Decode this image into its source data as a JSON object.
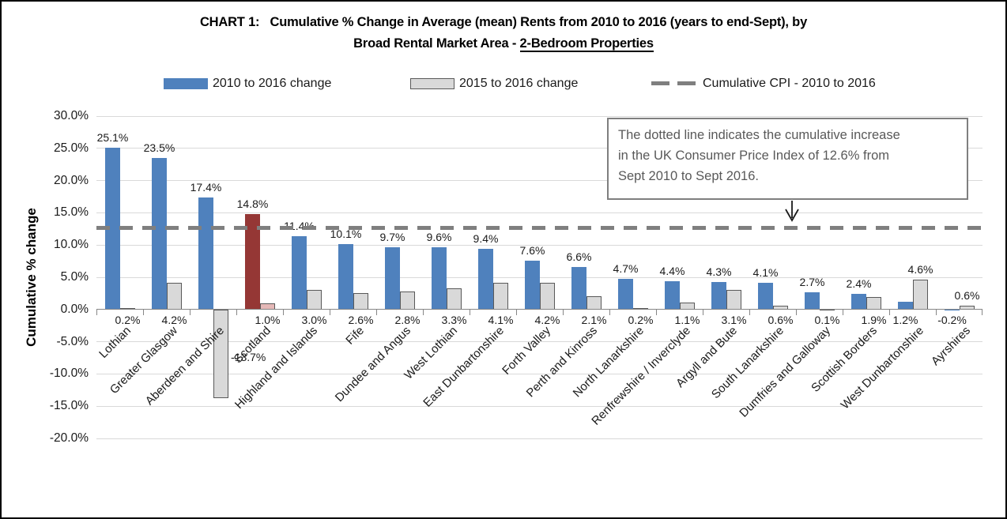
{
  "title": {
    "line1": "CHART 1:   Cumulative % Change in Average (mean) Rents from 2010 to 2016 (years to end-Sept), by",
    "line2_prefix": "Broad Rental Market Area - ",
    "line2_underline": "2-Bedroom Properties"
  },
  "legend": {
    "series1": "2010 to 2016 change",
    "series2": "2015 to 2016 change",
    "cpi": "Cumulative CPI - 2010 to 2016"
  },
  "annotation": {
    "text": "The dotted line indicates the cumulative increase\nin the UK Consumer Price Index of 12.6% from\nSept 2010 to Sept 2016."
  },
  "colors": {
    "series1": "#4F81BD",
    "series2_fill": "#D9D9D9",
    "series2_border": "#595959",
    "highlight_series1": "#953735",
    "highlight_series2_fill": "#E5B8B7",
    "highlight_series2_border": "#595959",
    "cpi_line": "#7F7F7F",
    "gridline": "#D9D9D9",
    "axis": "#868686"
  },
  "chart_data": {
    "type": "bar",
    "title": "CHART 1: Cumulative % Change in Average (mean) Rents from 2010 to 2016 (years to end-Sept), by Broad Rental Market Area - 2-Bedroom Properties",
    "ylabel": "Cumulative % change",
    "ylim": [
      -20,
      30
    ],
    "y_tick_step": 5,
    "grid": true,
    "legend_position": "top",
    "categories": [
      "Lothian",
      "Greater Glasgow",
      "Aberdeen and Shire",
      "Scotland",
      "Highland and Islands",
      "Fife",
      "Dundee and Angus",
      "West Lothian",
      "East Dunbartonshire",
      "Forth Valley",
      "Perth and Kinross",
      "North Lanarkshire",
      "Renfrewshire / Inverclyde",
      "Argyll and Bute",
      "South Lanarkshire",
      "Dumfries and Galloway",
      "Scottish Borders",
      "West Dunbartonshire",
      "Ayrshires"
    ],
    "series": [
      {
        "name": "2010 to 2016 change",
        "values": [
          25.1,
          23.5,
          17.4,
          14.8,
          11.4,
          10.1,
          9.7,
          9.6,
          9.4,
          7.6,
          6.6,
          4.7,
          4.4,
          4.3,
          4.1,
          2.7,
          2.4,
          1.2,
          -0.2
        ]
      },
      {
        "name": "2015 to 2016 change",
        "values": [
          0.2,
          4.2,
          -13.7,
          1.0,
          3.0,
          2.6,
          2.8,
          3.3,
          4.1,
          4.2,
          2.1,
          0.2,
          1.1,
          3.1,
          0.6,
          0.1,
          1.9,
          4.6,
          0.6
        ]
      }
    ],
    "highlight_category": "Scotland",
    "cpi_line": {
      "value": 12.6,
      "label": "Cumulative CPI - 2010 to 2016"
    }
  }
}
